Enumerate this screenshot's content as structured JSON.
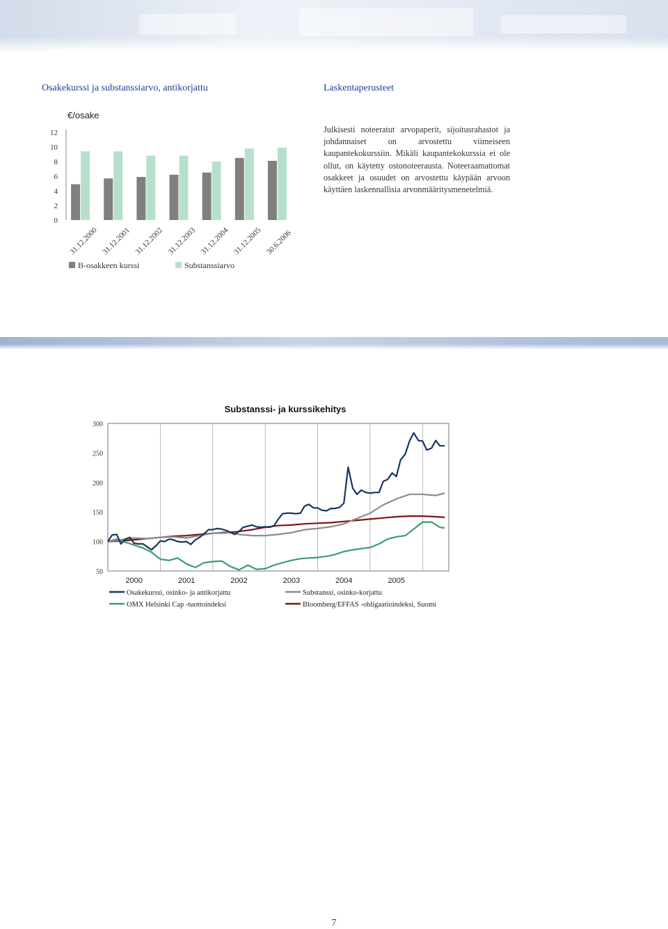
{
  "colors": {
    "heading": "#1f3f8f",
    "bar_share": "#808080",
    "bar_substance": "#b6e0cc",
    "line_share": "#16365f",
    "line_substance": "#8c8c8c",
    "line_omx": "#3d9b73",
    "line_bond": "#7f1418"
  },
  "chart1_title": "Osakekurssi ja substanssiarvo, antikorjattu",
  "section_title": "Laskentaperusteet",
  "body_text": "Julkisesti noteeratut arvopaperit, sijoitusrahastot ja johdannaiset on arvostettu viimeiseen kaupantekokurssiin. Mikäli kaupantekokurssia ei ole ollut, on käytetty ostonoteerausta. Noteeraamattomat osakkeet ja osuudet on arvostettu käypään arvoon käyttäen laskennallisia arvonmääritysmenetelmiä.",
  "page_number": "7",
  "chart_data": [
    {
      "type": "bar",
      "unit_label": "€/osake",
      "categories": [
        "31.12.2000",
        "31.12.2001",
        "31.12.2002",
        "31.12.2003",
        "31.12.2004",
        "31.12.2005",
        "30.6.2006"
      ],
      "ylim": [
        0,
        12
      ],
      "yticks": [
        0,
        2,
        4,
        6,
        8,
        10,
        12
      ],
      "grid": false,
      "legend_position": "bottom",
      "series": [
        {
          "name": "B-osakkeen kurssi",
          "values": [
            4.9,
            5.7,
            5.9,
            6.2,
            6.5,
            8.5,
            8.1
          ]
        },
        {
          "name": "Substanssiarvo",
          "values": [
            9.4,
            9.4,
            8.8,
            8.8,
            8.0,
            9.8,
            9.9
          ]
        }
      ]
    },
    {
      "type": "line",
      "title": "Substanssi- ja kurssikehitys",
      "ylim": [
        50,
        300
      ],
      "yticks": [
        50,
        100,
        150,
        200,
        250,
        300
      ],
      "xlim": [
        2000,
        2006.5
      ],
      "xtick_labels": [
        "2000",
        "2001",
        "2002",
        "2003",
        "2004",
        "2005"
      ],
      "grid": true,
      "legend_position": "bottom",
      "series": [
        {
          "name": "Osakekurssi, osinko- ja antikorjattu",
          "x": [
            2000,
            2000.08,
            2000.17,
            2000.25,
            2000.33,
            2000.42,
            2000.5,
            2000.58,
            2000.67,
            2000.75,
            2000.83,
            2000.92,
            2001,
            2001.08,
            2001.17,
            2001.25,
            2001.33,
            2001.42,
            2001.5,
            2001.58,
            2001.67,
            2001.75,
            2001.83,
            2001.92,
            2002,
            2002.08,
            2002.17,
            2002.25,
            2002.33,
            2002.42,
            2002.5,
            2002.58,
            2002.67,
            2002.75,
            2002.83,
            2002.92,
            2003,
            2003.08,
            2003.17,
            2003.25,
            2003.33,
            2003.42,
            2003.5,
            2003.58,
            2003.67,
            2003.75,
            2003.83,
            2003.92,
            2004,
            2004.08,
            2004.17,
            2004.25,
            2004.33,
            2004.42,
            2004.5,
            2004.58,
            2004.67,
            2004.75,
            2004.83,
            2004.92,
            2005,
            2005.08,
            2005.17,
            2005.25,
            2005.33,
            2005.42,
            2005.5,
            2005.58,
            2005.67,
            2005.75,
            2005.83,
            2005.92,
            2006,
            2006.08,
            2006.17,
            2006.25,
            2006.33,
            2006.42
          ],
          "y": [
            100,
            111,
            112,
            96,
            104,
            107,
            97,
            96,
            96,
            91,
            86,
            93,
            101,
            100,
            104,
            103,
            100,
            99,
            100,
            95,
            103,
            107,
            113,
            120,
            120,
            122,
            121,
            119,
            116,
            112,
            117,
            124,
            126,
            128,
            125,
            124,
            125,
            124,
            127,
            138,
            147,
            148,
            148,
            147,
            148,
            160,
            163,
            157,
            157,
            153,
            152,
            156,
            156,
            158,
            165,
            226,
            190,
            180,
            187,
            183,
            182,
            183,
            183,
            202,
            205,
            216,
            210,
            238,
            248,
            270,
            284,
            271,
            270,
            255,
            258,
            271,
            262,
            262
          ]
        },
        {
          "name": "Substanssi, osinko-korjattu",
          "x": [
            2000,
            2000.25,
            2000.5,
            2000.75,
            2001,
            2001.25,
            2001.5,
            2001.75,
            2002,
            2002.25,
            2002.5,
            2002.75,
            2003,
            2003.25,
            2003.5,
            2003.75,
            2004,
            2004.25,
            2004.5,
            2004.75,
            2005,
            2005.25,
            2005.5,
            2005.75,
            2006,
            2006.25,
            2006.42
          ],
          "y": [
            100,
            103,
            106,
            105,
            107,
            108,
            106,
            110,
            114,
            116,
            112,
            110,
            110,
            112,
            115,
            120,
            122,
            125,
            130,
            139,
            148,
            162,
            172,
            180,
            180,
            178,
            182
          ]
        },
        {
          "name": "OMX Helsinki Cap -tuottoindeksi",
          "x": [
            2000,
            2000.17,
            2000.33,
            2000.5,
            2000.67,
            2000.83,
            2001,
            2001.17,
            2001.33,
            2001.5,
            2001.67,
            2001.83,
            2002,
            2002.17,
            2002.33,
            2002.5,
            2002.67,
            2002.83,
            2003,
            2003.17,
            2003.33,
            2003.5,
            2003.67,
            2003.83,
            2004,
            2004.17,
            2004.33,
            2004.5,
            2004.67,
            2004.83,
            2005,
            2005.17,
            2005.33,
            2005.5,
            2005.67,
            2005.83,
            2006,
            2006.17,
            2006.33,
            2006.42
          ],
          "y": [
            100,
            104,
            99,
            94,
            89,
            82,
            70,
            68,
            72,
            62,
            56,
            64,
            66,
            67,
            58,
            52,
            60,
            53,
            54,
            60,
            64,
            68,
            71,
            72,
            73,
            75,
            78,
            83,
            86,
            88,
            90,
            96,
            104,
            108,
            110,
            121,
            133,
            133,
            124,
            123
          ]
        },
        {
          "name": "Bloomberg/EFFAS -obligaatioindeksi, Suomi",
          "x": [
            2000,
            2000.25,
            2000.5,
            2000.75,
            2001,
            2001.25,
            2001.5,
            2001.75,
            2002,
            2002.25,
            2002.5,
            2002.75,
            2003,
            2003.25,
            2003.5,
            2003.75,
            2004,
            2004.25,
            2004.5,
            2004.75,
            2005,
            2005.25,
            2005.5,
            2005.75,
            2006,
            2006.25,
            2006.42
          ],
          "y": [
            100,
            101,
            103,
            105,
            107,
            109,
            110,
            112,
            114,
            115,
            117,
            120,
            124,
            127,
            128,
            130,
            131,
            132,
            134,
            136,
            138,
            140,
            142,
            143,
            143,
            142,
            141
          ]
        }
      ]
    }
  ]
}
